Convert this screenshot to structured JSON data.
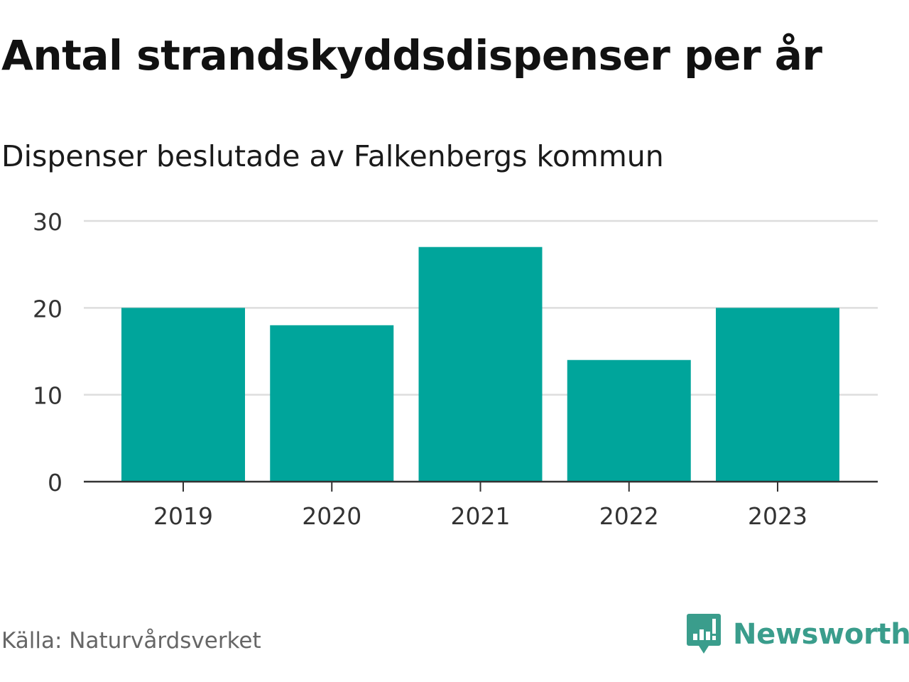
{
  "title": "Antal strandskyddsdispenser per år",
  "subtitle": "Dispenser beslutade av Falkenbergs kommun",
  "source": "Källa: Naturvårdsverket",
  "brand": {
    "name": "Newsworthy",
    "logo_icon": "newsworthy-logo-icon",
    "color": "#3a9d8c"
  },
  "chart_data": {
    "type": "bar",
    "categories": [
      "2019",
      "2020",
      "2021",
      "2022",
      "2023"
    ],
    "values": [
      20,
      18,
      27,
      14,
      20
    ],
    "yticks": [
      "0",
      "10",
      "20",
      "30"
    ],
    "ylim": [
      0,
      30
    ],
    "xlabel": "",
    "ylabel": "",
    "grid": true,
    "bar_color": "#00a59b",
    "grid_color": "#dddddd",
    "axis_color": "#333333"
  }
}
